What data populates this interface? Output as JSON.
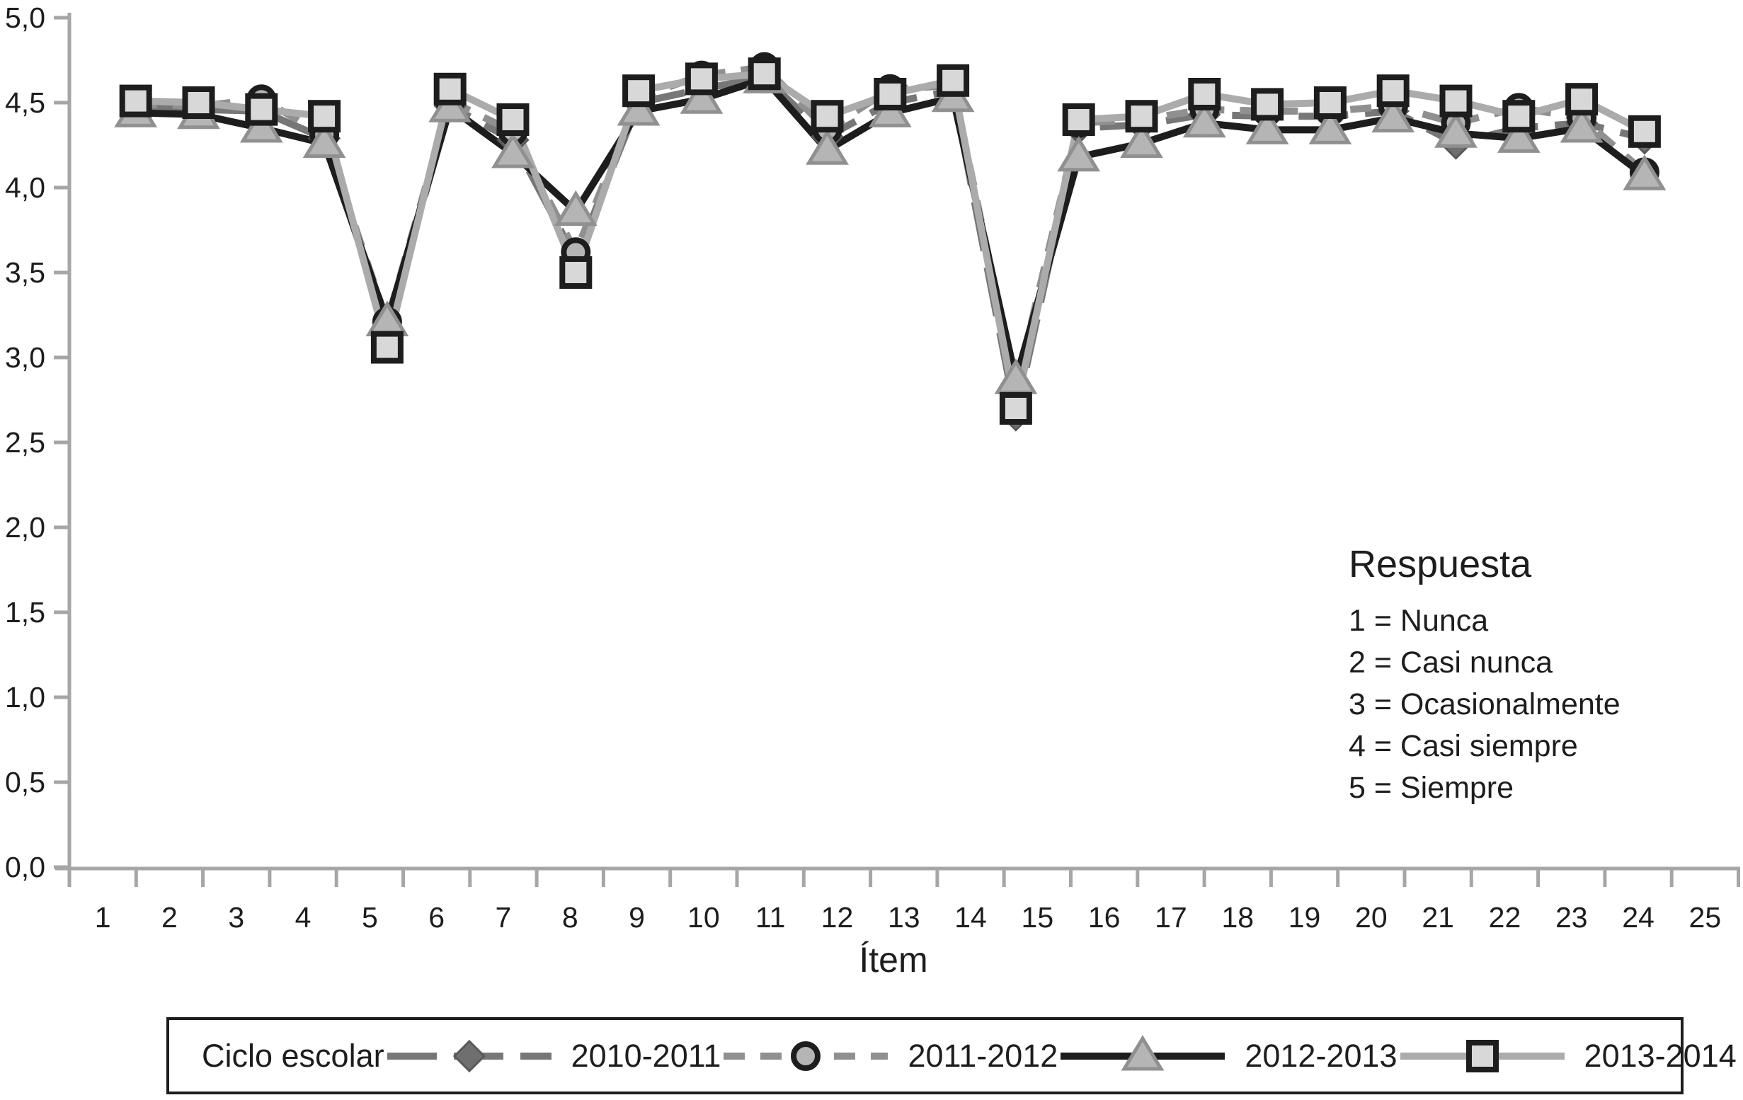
{
  "chart_data": {
    "type": "line",
    "title": "",
    "xlabel": "Ítem",
    "ylabel": "",
    "x_categories": [
      "1",
      "2",
      "3",
      "4",
      "5",
      "6",
      "7",
      "8",
      "9",
      "10",
      "11",
      "12",
      "13",
      "14",
      "15",
      "16",
      "17",
      "18",
      "19",
      "20",
      "21",
      "22",
      "23",
      "24",
      "25"
    ],
    "ylim": [
      0,
      5
    ],
    "ytick_step": 0.5,
    "ytick_labels": [
      "0,0",
      "0,5",
      "1,0",
      "1,5",
      "2,0",
      "2,5",
      "3,0",
      "3,5",
      "4,0",
      "4,5",
      "5,0"
    ],
    "grid": false,
    "legend_position": "bottom",
    "series": [
      {
        "name": "2010-2011",
        "marker": "diamond",
        "line_style": "long-dash",
        "color": "#777777",
        "marker_fill": "#6f6f6f",
        "marker_stroke": "#595959",
        "values": [
          4.47,
          4.46,
          4.45,
          4.29,
          3.17,
          4.48,
          4.28,
          3.58,
          4.5,
          4.58,
          4.65,
          4.3,
          4.5,
          4.57,
          2.66,
          4.35,
          4.37,
          4.43,
          4.42,
          4.42,
          4.45,
          4.26,
          4.35,
          4.38,
          4.29
        ]
      },
      {
        "name": "2011-2012",
        "marker": "circle",
        "line_style": "dashed",
        "color": "#909090",
        "marker_fill": "#b5b5b5",
        "marker_stroke": "#1d1d1d",
        "values": [
          4.49,
          4.48,
          4.52,
          4.31,
          3.21,
          4.51,
          4.33,
          3.62,
          4.53,
          4.66,
          4.71,
          4.34,
          4.58,
          4.6,
          2.82,
          4.38,
          4.4,
          4.46,
          4.45,
          4.45,
          4.48,
          4.38,
          4.47,
          4.41,
          4.09
        ]
      },
      {
        "name": "2012-2013",
        "marker": "triangle",
        "line_style": "solid",
        "color": "#1d1d1d",
        "marker_fill": "#b5b5b5",
        "marker_stroke": "#909090",
        "values": [
          4.44,
          4.43,
          4.35,
          4.26,
          3.21,
          4.47,
          4.2,
          3.86,
          4.45,
          4.52,
          4.64,
          4.22,
          4.44,
          4.53,
          2.87,
          4.18,
          4.26,
          4.38,
          4.34,
          4.34,
          4.41,
          4.32,
          4.29,
          4.35,
          4.07
        ]
      },
      {
        "name": "2013-2014",
        "marker": "square",
        "line_style": "solid",
        "color": "#ababab",
        "marker_fill": "#d8d8d8",
        "marker_stroke": "#1d1d1d",
        "values": [
          4.51,
          4.5,
          4.46,
          4.42,
          3.06,
          4.58,
          4.4,
          3.5,
          4.57,
          4.64,
          4.67,
          4.42,
          4.55,
          4.63,
          2.7,
          4.4,
          4.42,
          4.55,
          4.49,
          4.5,
          4.57,
          4.51,
          4.42,
          4.52,
          4.33
        ]
      }
    ]
  },
  "legend": {
    "title": "Ciclo escolar"
  },
  "annotation": {
    "title": "Respuesta",
    "lines": [
      "1 = Nunca",
      "2 = Casi nunca",
      "3 = Ocasionalmente",
      "4 = Casi siempre",
      "5 = Siempre"
    ]
  },
  "colors": {
    "axis": "#a6a6a6",
    "text": "#1d1d1d",
    "background": "#ffffff"
  }
}
